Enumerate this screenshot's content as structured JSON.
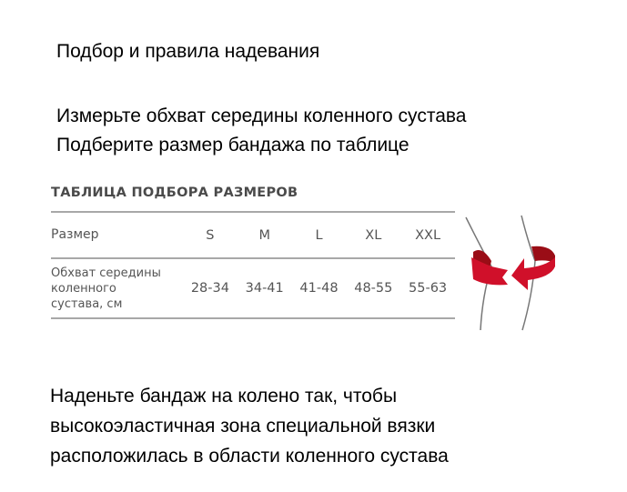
{
  "heading": "Подбор и правила надевания",
  "step1": [
    "Измерьте обхват середины коленного сустава",
    "Подберите размер бандажа по таблице"
  ],
  "table": {
    "title": "ТАБЛИЦА ПОДБОРА РАЗМЕРОВ",
    "header": [
      "Размер",
      "S",
      "M",
      "L",
      "XL",
      "XXL"
    ],
    "row_label": [
      "Обхват середины",
      "коленного",
      "сустава, см"
    ],
    "values": [
      "28-34",
      "34-41",
      "41-48",
      "48-55",
      "55-63"
    ]
  },
  "step2": [
    "Наденьте бандаж на колено так, чтобы",
    "высокоэластичная зона специальной вязки",
    "расположилась в области коленного сустава"
  ],
  "colors": {
    "accent": "#d0102a",
    "accent_dark": "#9a0d16"
  }
}
